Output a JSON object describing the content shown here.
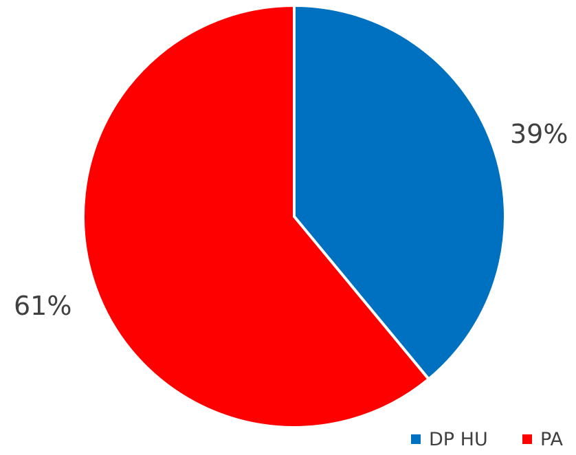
{
  "chart_data": {
    "type": "pie",
    "categories": [
      "DP HU",
      "PA"
    ],
    "values": [
      39,
      61
    ],
    "labels": [
      "39%",
      "61%"
    ],
    "colors": [
      "#0070c0",
      "#ff0000"
    ],
    "slice_border_color": "#ffffff",
    "start_angle": "12 o'clock",
    "direction": "clockwise",
    "legend": {
      "position": "bottom-right",
      "items": [
        {
          "label": "DP HU",
          "color": "#0070c0"
        },
        {
          "label": "PA",
          "color": "#ff0000"
        }
      ]
    }
  }
}
